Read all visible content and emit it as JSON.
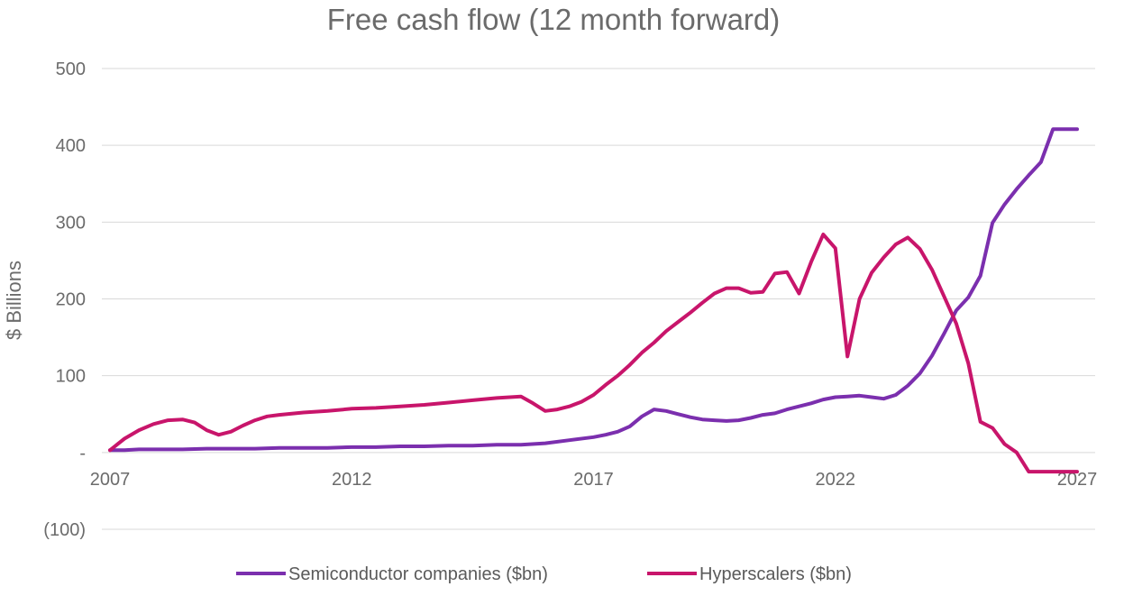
{
  "chart_data": {
    "type": "line",
    "title": "Free cash flow (12 month forward)",
    "ylabel": "$ Billions",
    "xlabel": "",
    "ylim": [
      -100,
      500
    ],
    "xlim": [
      2007,
      2027
    ],
    "y_ticks": [
      500,
      400,
      300,
      200,
      100,
      0,
      -100
    ],
    "y_tick_labels": [
      "500",
      "400",
      "300",
      "200",
      "100",
      "-",
      "(100)"
    ],
    "x_ticks": [
      2007,
      2012,
      2017,
      2022,
      2027
    ],
    "x_tick_labels": [
      "2007",
      "2012",
      "2017",
      "2022",
      "2027"
    ],
    "grid": true,
    "legend_position": "bottom",
    "series": [
      {
        "name": "Semiconductor companies ($bn)",
        "color": "#7b2fae",
        "x": [
          2007.0,
          2007.3,
          2007.6,
          2008.0,
          2008.5,
          2009.0,
          2009.5,
          2010.0,
          2010.5,
          2011.0,
          2011.5,
          2012.0,
          2012.5,
          2013.0,
          2013.5,
          2014.0,
          2014.5,
          2015.0,
          2015.5,
          2016.0,
          2016.5,
          2017.0,
          2017.25,
          2017.5,
          2017.75,
          2018.0,
          2018.25,
          2018.5,
          2018.75,
          2019.0,
          2019.25,
          2019.5,
          2019.75,
          2020.0,
          2020.25,
          2020.5,
          2020.75,
          2021.0,
          2021.25,
          2021.5,
          2021.75,
          2022.0,
          2022.25,
          2022.5,
          2022.75,
          2023.0,
          2023.25,
          2023.5,
          2023.75,
          2024.0,
          2024.25,
          2024.5,
          2024.75,
          2025.0,
          2025.25,
          2025.5,
          2025.75,
          2026.0,
          2026.25,
          2026.5,
          2026.75,
          2027.0
        ],
        "values": [
          3,
          3,
          4,
          4,
          4,
          5,
          5,
          5,
          6,
          6,
          6,
          7,
          7,
          8,
          8,
          9,
          9,
          10,
          10,
          12,
          16,
          20,
          23,
          27,
          34,
          47,
          56,
          54,
          50,
          46,
          43,
          42,
          41,
          42,
          45,
          49,
          51,
          56,
          60,
          64,
          69,
          72,
          73,
          74,
          72,
          70,
          75,
          87,
          103,
          126,
          155,
          185,
          202,
          230,
          299,
          323,
          343,
          361,
          378,
          421,
          421,
          421
        ]
      },
      {
        "name": "Hyperscalers ($bn)",
        "color": "#c8156b",
        "x": [
          2007.0,
          2007.3,
          2007.6,
          2007.9,
          2008.2,
          2008.5,
          2008.75,
          2009.0,
          2009.25,
          2009.5,
          2009.75,
          2010.0,
          2010.25,
          2010.5,
          2011.0,
          2011.5,
          2012.0,
          2012.5,
          2013.0,
          2013.5,
          2014.0,
          2014.5,
          2015.0,
          2015.5,
          2015.75,
          2016.0,
          2016.25,
          2016.5,
          2016.75,
          2017.0,
          2017.25,
          2017.5,
          2017.75,
          2018.0,
          2018.25,
          2018.5,
          2018.75,
          2019.0,
          2019.25,
          2019.5,
          2019.75,
          2020.0,
          2020.25,
          2020.5,
          2020.75,
          2021.0,
          2021.25,
          2021.5,
          2021.75,
          2022.0,
          2022.25,
          2022.5,
          2022.75,
          2023.0,
          2023.25,
          2023.5,
          2023.75,
          2024.0,
          2024.25,
          2024.5,
          2024.75,
          2025.0,
          2025.25,
          2025.5,
          2025.75,
          2026.0,
          2026.25,
          2026.5,
          2026.75,
          2027.0
        ],
        "values": [
          3,
          18,
          29,
          37,
          42,
          43,
          39,
          29,
          23,
          27,
          35,
          42,
          47,
          49,
          52,
          54,
          57,
          58,
          60,
          62,
          65,
          68,
          71,
          73,
          64,
          54,
          56,
          60,
          66,
          75,
          88,
          100,
          114,
          130,
          143,
          158,
          170,
          182,
          195,
          207,
          214,
          214,
          208,
          209,
          233,
          235,
          207,
          248,
          284,
          266,
          125,
          200,
          234,
          254,
          271,
          280,
          265,
          238,
          203,
          168,
          116,
          40,
          32,
          11,
          0,
          -25,
          -25,
          -25,
          -25,
          -25
        ]
      }
    ]
  }
}
